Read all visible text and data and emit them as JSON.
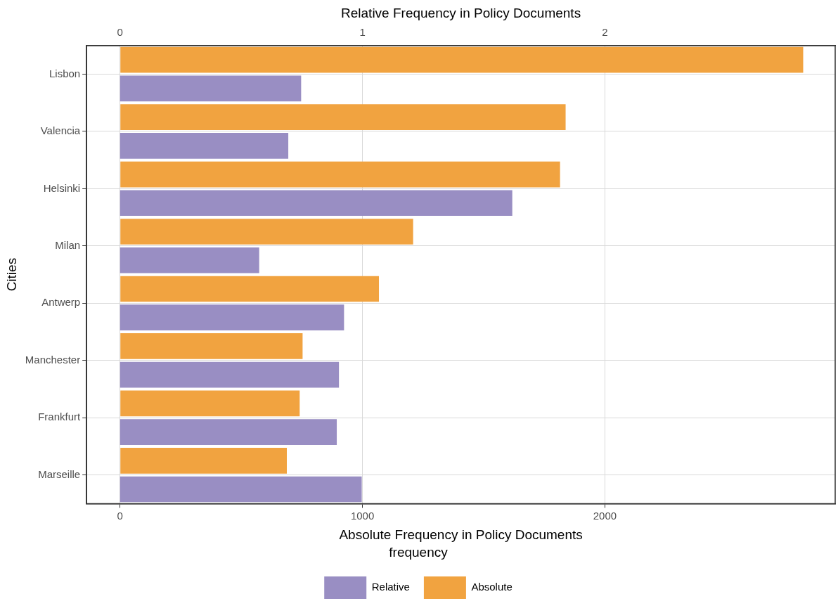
{
  "chart_data": {
    "type": "bar",
    "orientation": "horizontal",
    "xlabel": "Absolute Frequency in Policy Documents",
    "x2label": "Relative Frequency in Policy Documents",
    "ylabel": "Cities",
    "legend_title": "frequency",
    "categories": [
      "Lisbon",
      "Valencia",
      "Helsinki",
      "Milan",
      "Antwerp",
      "Manchester",
      "Frankfurt",
      "Marseille"
    ],
    "series": [
      {
        "name": "Relative",
        "color": "#998ec3",
        "axis": "x2",
        "values": [
          0.747,
          0.694,
          1.618,
          0.574,
          0.924,
          0.903,
          0.894,
          0.997
        ]
      },
      {
        "name": "Absolute",
        "color": "#f1a340",
        "values": [
          2818,
          1838,
          1815,
          1209,
          1068,
          753,
          741,
          688
        ]
      }
    ],
    "xlim": [
      -138,
      2950
    ],
    "xticks": [
      0,
      1000,
      2000
    ],
    "x2lim": [
      -0.138,
      2.95
    ],
    "x2ticks": [
      0,
      1,
      2
    ],
    "grid": true,
    "legend": "bottom"
  }
}
